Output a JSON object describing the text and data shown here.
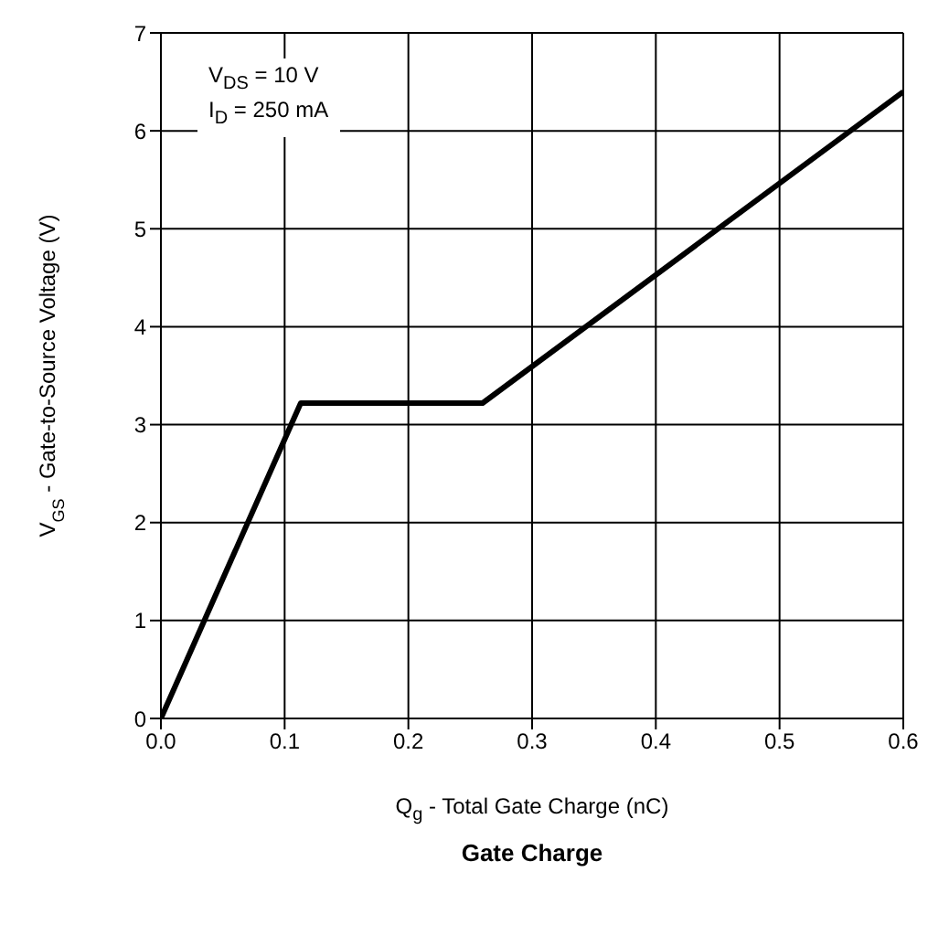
{
  "chart_data": {
    "type": "line",
    "title": "Gate Charge",
    "xlabel": "Q$_{g}$ - Total Gate Charge (nC)",
    "ylabel": "V$_{GS}$ - Gate-to-Source Voltage (V)",
    "annotations": [
      "V$_{DS}$ = 10 V",
      "I$_{D}$ = 250 mA"
    ],
    "x": [
      0,
      0.113,
      0.26,
      0.6
    ],
    "series": [
      {
        "color": "#000000",
        "values": [
          0,
          3.22,
          3.22,
          6.4
        ]
      }
    ],
    "xlim": [
      0,
      0.6
    ],
    "xticks": [
      {
        "value": 0,
        "label": "0.0"
      },
      {
        "value": 0.1,
        "label": "0.1"
      },
      {
        "value": 0.2,
        "label": "0.2"
      },
      {
        "value": 0.3,
        "label": "0.3"
      },
      {
        "value": 0.4,
        "label": "0.4"
      },
      {
        "value": 0.5,
        "label": "0.5"
      },
      {
        "value": 0.6,
        "label": "0.6"
      }
    ],
    "ylim": [
      0,
      7
    ],
    "yticks": [
      0,
      1,
      2,
      3,
      4,
      5,
      6,
      7
    ],
    "grid": true,
    "marker": "none",
    "line_style": "solid"
  }
}
